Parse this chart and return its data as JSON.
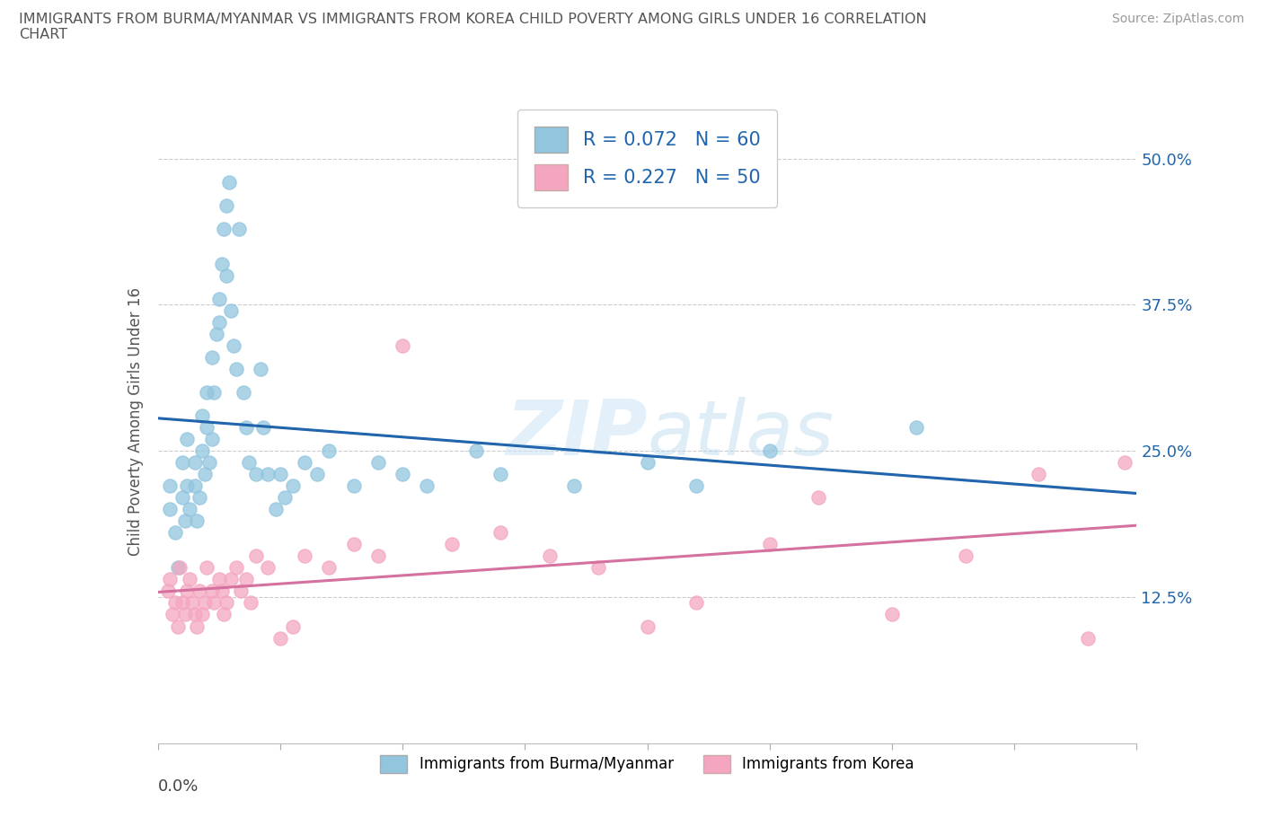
{
  "title": "IMMIGRANTS FROM BURMA/MYANMAR VS IMMIGRANTS FROM KOREA CHILD POVERTY AMONG GIRLS UNDER 16 CORRELATION\nCHART",
  "source": "Source: ZipAtlas.com",
  "xlabel_bottom_left": "0.0%",
  "ylabel_label": "Child Poverty Among Girls Under 16",
  "legend_label1": "Immigrants from Burma/Myanmar",
  "legend_label2": "Immigrants from Korea",
  "color_burma": "#92c5de",
  "color_korea": "#f4a6c0",
  "color_burma_line": "#2166ac",
  "color_korea_line": "#d4719e",
  "R_burma": 0.072,
  "N_burma": 60,
  "R_korea": 0.227,
  "N_korea": 50,
  "xlim": [
    0.0,
    0.4
  ],
  "ylim": [
    0.0,
    0.55
  ],
  "x_ticks": [
    0.0,
    0.05,
    0.1,
    0.15,
    0.2,
    0.25,
    0.3,
    0.35,
    0.4
  ],
  "y_ticks_right": [
    0.125,
    0.25,
    0.375,
    0.5
  ],
  "burma_x": [
    0.005,
    0.005,
    0.007,
    0.008,
    0.01,
    0.01,
    0.011,
    0.012,
    0.012,
    0.013,
    0.015,
    0.015,
    0.016,
    0.017,
    0.018,
    0.018,
    0.019,
    0.02,
    0.02,
    0.021,
    0.022,
    0.022,
    0.023,
    0.024,
    0.025,
    0.025,
    0.026,
    0.027,
    0.028,
    0.028,
    0.029,
    0.03,
    0.031,
    0.032,
    0.033,
    0.035,
    0.036,
    0.037,
    0.04,
    0.042,
    0.043,
    0.045,
    0.048,
    0.05,
    0.052,
    0.055,
    0.06,
    0.065,
    0.07,
    0.08,
    0.09,
    0.1,
    0.11,
    0.13,
    0.14,
    0.17,
    0.2,
    0.22,
    0.25,
    0.31
  ],
  "burma_y": [
    0.22,
    0.2,
    0.18,
    0.15,
    0.24,
    0.21,
    0.19,
    0.22,
    0.26,
    0.2,
    0.22,
    0.24,
    0.19,
    0.21,
    0.28,
    0.25,
    0.23,
    0.3,
    0.27,
    0.24,
    0.26,
    0.33,
    0.3,
    0.35,
    0.38,
    0.36,
    0.41,
    0.44,
    0.46,
    0.4,
    0.48,
    0.37,
    0.34,
    0.32,
    0.44,
    0.3,
    0.27,
    0.24,
    0.23,
    0.32,
    0.27,
    0.23,
    0.2,
    0.23,
    0.21,
    0.22,
    0.24,
    0.23,
    0.25,
    0.22,
    0.24,
    0.23,
    0.22,
    0.25,
    0.23,
    0.22,
    0.24,
    0.22,
    0.25,
    0.27
  ],
  "korea_x": [
    0.004,
    0.005,
    0.006,
    0.007,
    0.008,
    0.009,
    0.01,
    0.011,
    0.012,
    0.013,
    0.014,
    0.015,
    0.016,
    0.017,
    0.018,
    0.019,
    0.02,
    0.022,
    0.023,
    0.025,
    0.026,
    0.027,
    0.028,
    0.03,
    0.032,
    0.034,
    0.036,
    0.038,
    0.04,
    0.045,
    0.05,
    0.055,
    0.06,
    0.07,
    0.08,
    0.09,
    0.1,
    0.12,
    0.14,
    0.16,
    0.18,
    0.2,
    0.22,
    0.25,
    0.27,
    0.3,
    0.33,
    0.36,
    0.38,
    0.395
  ],
  "korea_y": [
    0.13,
    0.14,
    0.11,
    0.12,
    0.1,
    0.15,
    0.12,
    0.11,
    0.13,
    0.14,
    0.12,
    0.11,
    0.1,
    0.13,
    0.11,
    0.12,
    0.15,
    0.13,
    0.12,
    0.14,
    0.13,
    0.11,
    0.12,
    0.14,
    0.15,
    0.13,
    0.14,
    0.12,
    0.16,
    0.15,
    0.09,
    0.1,
    0.16,
    0.15,
    0.17,
    0.16,
    0.34,
    0.17,
    0.18,
    0.16,
    0.15,
    0.1,
    0.12,
    0.17,
    0.21,
    0.11,
    0.16,
    0.23,
    0.09,
    0.24
  ]
}
